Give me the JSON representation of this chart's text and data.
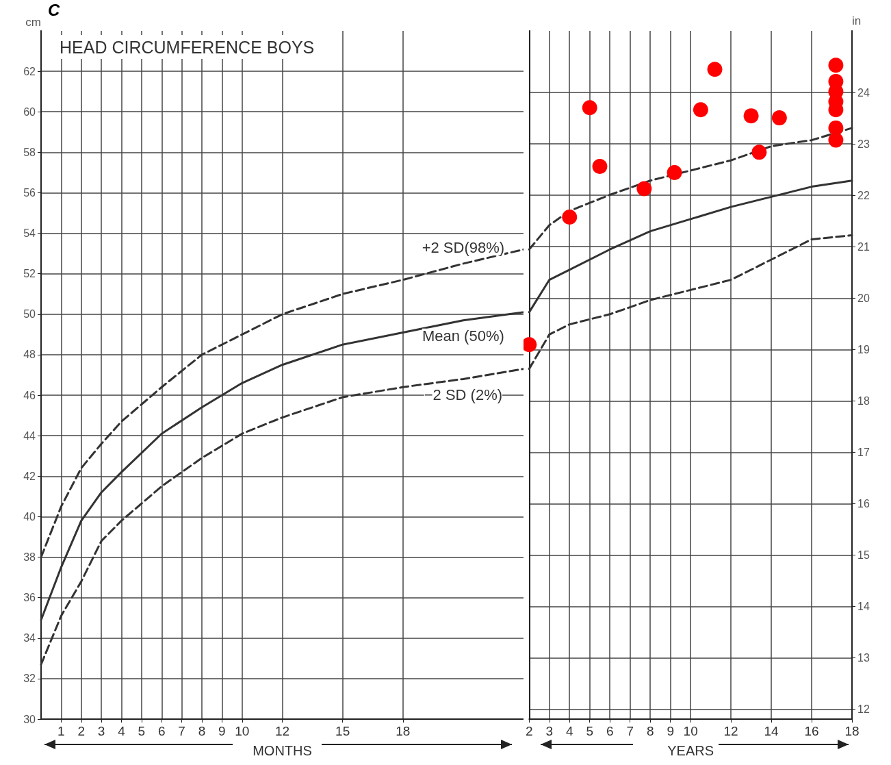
{
  "chart_data": [
    {
      "type": "line",
      "title": "HEAD CIRCUMFERENCE BOYS",
      "xlabel": "MONTHS",
      "ylabel": "cm",
      "annotations": [
        "C"
      ],
      "xlim": [
        0,
        24
      ],
      "xticks": [
        1,
        2,
        3,
        4,
        5,
        6,
        7,
        8,
        9,
        10,
        12,
        15,
        18
      ],
      "ylim": [
        30,
        64
      ],
      "yticks": [
        30,
        32,
        34,
        36,
        38,
        40,
        42,
        44,
        46,
        48,
        50,
        52,
        54,
        56,
        58,
        60,
        62
      ],
      "grid": true,
      "legend": false,
      "x": [
        0,
        1,
        2,
        3,
        4,
        6,
        8,
        10,
        12,
        15,
        18,
        21,
        24
      ],
      "series": [
        {
          "name": "+2 SD(98%)",
          "color": "#333333",
          "line_style": "dashed",
          "marker": "none",
          "values": [
            38.0,
            40.5,
            42.4,
            43.6,
            44.7,
            46.4,
            48.0,
            49.0,
            50.0,
            51.0,
            51.7,
            52.5,
            53.2
          ]
        },
        {
          "name": "Mean (50%)",
          "color": "#333333",
          "line_style": "solid",
          "marker": "none",
          "values": [
            34.9,
            37.5,
            39.8,
            41.2,
            42.2,
            44.1,
            45.4,
            46.6,
            47.5,
            48.5,
            49.1,
            49.7,
            50.1
          ]
        },
        {
          "name": "−2 SD (2%)",
          "color": "#333333",
          "line_style": "dashed",
          "marker": "none",
          "values": [
            32.7,
            35.1,
            36.8,
            38.8,
            39.8,
            41.5,
            42.9,
            44.1,
            44.9,
            45.9,
            46.4,
            46.8,
            47.3
          ]
        }
      ]
    },
    {
      "type": "line",
      "xlabel": "YEARS",
      "y2label": "in",
      "xlim": [
        2,
        18
      ],
      "xticks": [
        2,
        3,
        4,
        5,
        6,
        7,
        8,
        9,
        10,
        12,
        14,
        16,
        18
      ],
      "ylim": [
        30,
        64
      ],
      "y2lim": [
        11.81,
        25.2
      ],
      "y2ticks": [
        12,
        13,
        14,
        15,
        16,
        17,
        18,
        19,
        20,
        21,
        22,
        23,
        24
      ],
      "grid": true,
      "legend": false,
      "x": [
        2,
        3,
        4,
        6,
        8,
        10,
        12,
        14,
        16,
        18
      ],
      "series": [
        {
          "color": "#333333",
          "line_style": "dashed",
          "marker": "none",
          "values": [
            53.2,
            54.4,
            55.1,
            55.9,
            56.6,
            57.1,
            57.6,
            58.3,
            58.6,
            59.2
          ]
        },
        {
          "color": "#333333",
          "line_style": "solid",
          "marker": "none",
          "values": [
            50.1,
            51.7,
            52.2,
            53.2,
            54.1,
            54.7,
            55.3,
            55.8,
            56.3,
            56.6
          ]
        },
        {
          "color": "#333333",
          "line_style": "dashed",
          "marker": "none",
          "values": [
            47.3,
            49.0,
            49.5,
            50.0,
            50.7,
            51.2,
            51.7,
            52.7,
            53.7,
            53.9
          ]
        },
        {
          "type": "scatter",
          "color": "#ff0000",
          "marker": "circle",
          "x": [
            2,
            4,
            5,
            5.5,
            7.7,
            9.2,
            10.5,
            11.2,
            13,
            13.4,
            14.4,
            17.2,
            17.2,
            17.2,
            17.2,
            17.2,
            17.2,
            17.2
          ],
          "values": [
            48.5,
            54.8,
            60.2,
            57.3,
            56.2,
            57.0,
            60.1,
            62.1,
            59.8,
            58.0,
            59.7,
            62.3,
            61.5,
            61.0,
            60.5,
            60.1,
            59.2,
            58.6
          ]
        }
      ]
    }
  ]
}
